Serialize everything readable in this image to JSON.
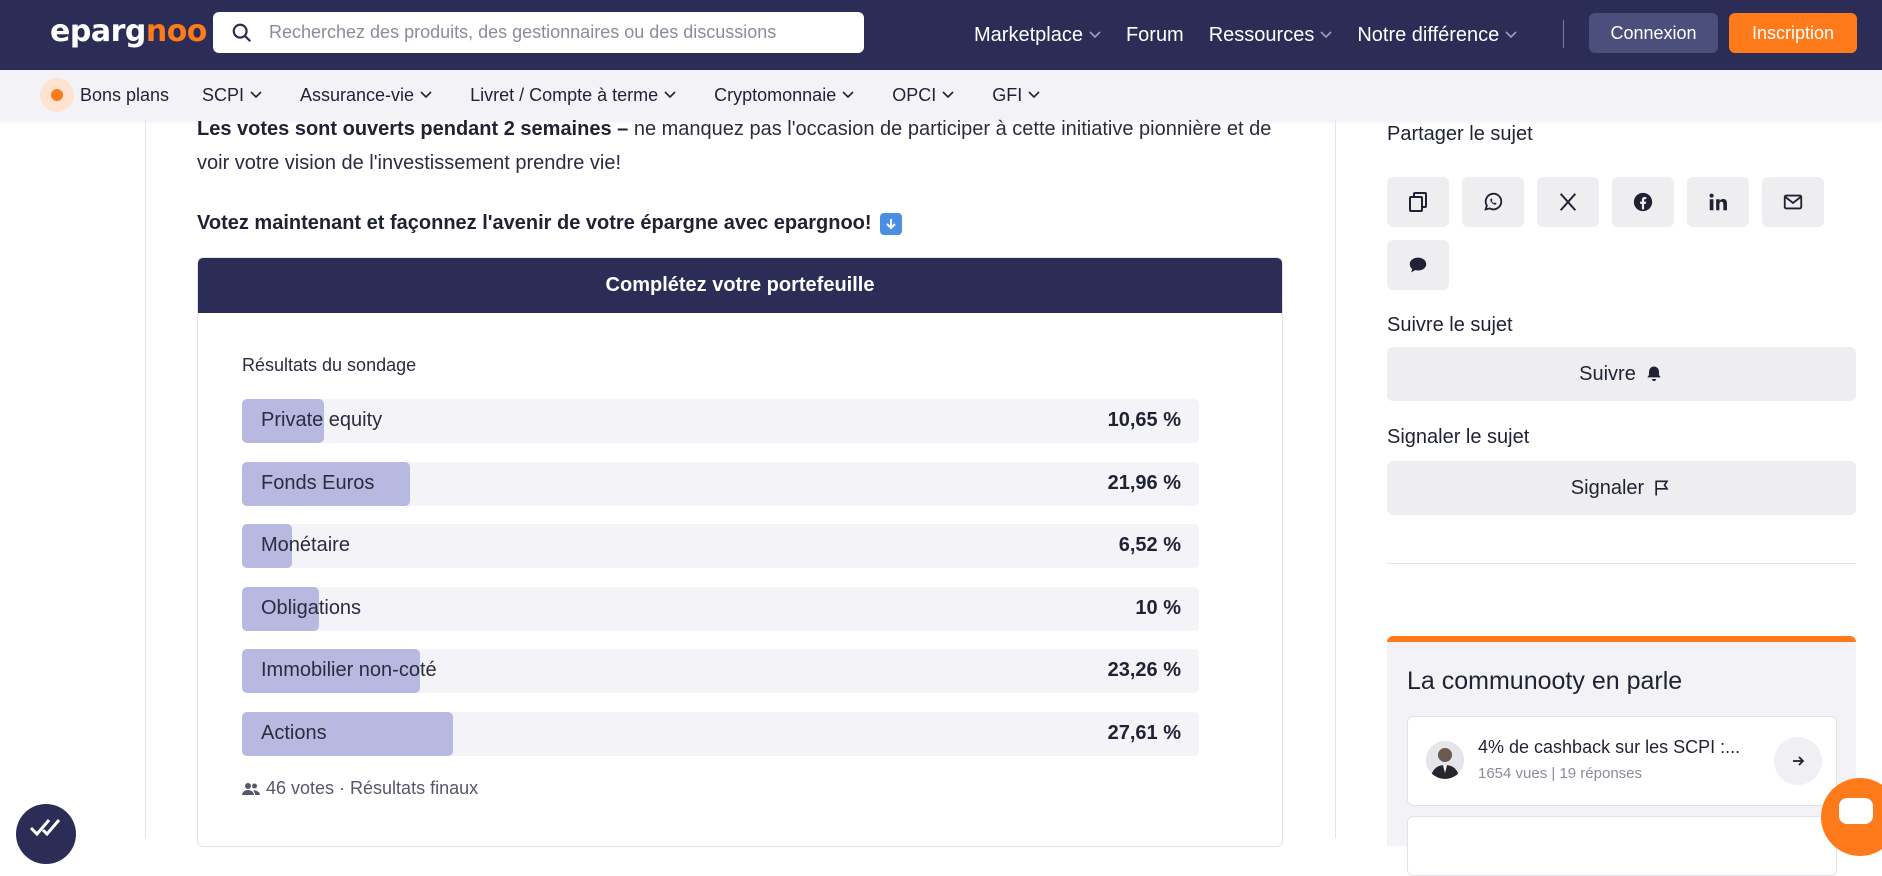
{
  "brand": {
    "logo_text_a": "eparg",
    "logo_text_b": "noo",
    "accent": "#ff7a1a",
    "navy": "#2b2d56"
  },
  "search": {
    "placeholder": "Recherchez des produits, des gestionnaires ou des discussions"
  },
  "topnav": {
    "items": [
      "Marketplace",
      "Forum",
      "Ressources",
      "Notre différence"
    ],
    "login": "Connexion",
    "signup": "Inscription"
  },
  "subnav": {
    "deals": "Bons plans",
    "links": [
      "SCPI",
      "Assurance-vie",
      "Livret / Compte à terme",
      "Cryptomonnaie",
      "OPCI",
      "GFI"
    ]
  },
  "article": {
    "para_bold": "Les votes sont ouverts pendant 2 semaines –",
    "para_rest": " ne manquez pas l'occasion de participer à cette initiative pionnière et de voir votre vision de l'investissement prendre vie!",
    "cta": "Votez maintenant et façonnez l'avenir de votre épargne avec epargnoo!"
  },
  "poll": {
    "title": "Complétez votre portefeuille",
    "subtitle": "Résultats du sondage",
    "options": [
      {
        "label": "Private equity",
        "percent": "10,65 %",
        "share": 0.1065
      },
      {
        "label": "Fonds Euros",
        "percent": "21,96 %",
        "share": 0.2196
      },
      {
        "label": "Monétaire",
        "percent": "6,52 %",
        "share": 0.0652
      },
      {
        "label": "Obligations",
        "percent": "10 %",
        "share": 0.1
      },
      {
        "label": "Immobilier non-coté",
        "percent": "23,26 %",
        "share": 0.2326
      },
      {
        "label": "Actions",
        "percent": "27,61 %",
        "share": 0.2761
      }
    ],
    "footer": "46 votes · Résultats finaux"
  },
  "sidebar": {
    "share_title": "Partager le sujet",
    "share_icons": [
      "copy-icon",
      "whatsapp-icon",
      "x-icon",
      "facebook-icon",
      "linkedin-icon",
      "mail-icon",
      "sms-icon"
    ],
    "follow_title": "Suivre le sujet",
    "follow_btn": "Suivre",
    "report_title": "Signaler le sujet",
    "report_btn": "Signaler",
    "community_title": "La communooty en parle",
    "topic": {
      "title": "4% de cashback sur les SCPI :...",
      "meta": "1654 vues | 19 réponses"
    }
  }
}
